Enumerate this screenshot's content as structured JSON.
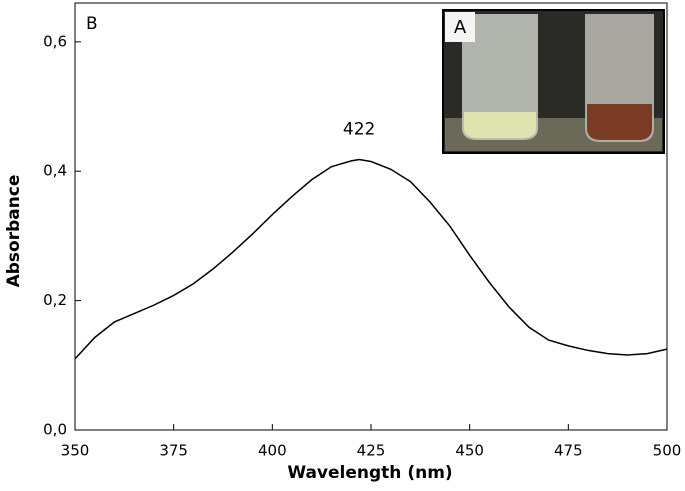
{
  "chart_data": {
    "type": "line",
    "panel_label": "B",
    "inset_label": "A",
    "xlabel": "Wavelength (nm)",
    "ylabel": "Absorbance",
    "annotations": [
      {
        "text": "422"
      }
    ],
    "x": [
      350,
      355,
      360,
      365,
      370,
      375,
      380,
      385,
      390,
      395,
      400,
      405,
      410,
      415,
      420,
      422,
      425,
      430,
      435,
      440,
      445,
      450,
      455,
      460,
      465,
      470,
      475,
      480,
      485,
      490,
      495,
      500
    ],
    "values": [
      0.11,
      0.143,
      0.167,
      0.18,
      0.193,
      0.208,
      0.226,
      0.249,
      0.275,
      0.303,
      0.333,
      0.361,
      0.387,
      0.407,
      0.416,
      0.418,
      0.415,
      0.403,
      0.384,
      0.352,
      0.315,
      0.27,
      0.228,
      0.19,
      0.159,
      0.139,
      0.13,
      0.123,
      0.118,
      0.116,
      0.118,
      0.125
    ],
    "color": "#000000",
    "xlim": [
      350,
      500
    ],
    "xticks": [
      350,
      375,
      400,
      425,
      450,
      475,
      500
    ],
    "ylim": [
      0,
      0.66
    ],
    "yticks": [
      {
        "value": 0,
        "label": "0,0"
      },
      {
        "value": 0.2,
        "label": "0,2"
      },
      {
        "value": 0.4,
        "label": "0,4"
      },
      {
        "value": 0.6,
        "label": "0,6"
      }
    ]
  }
}
